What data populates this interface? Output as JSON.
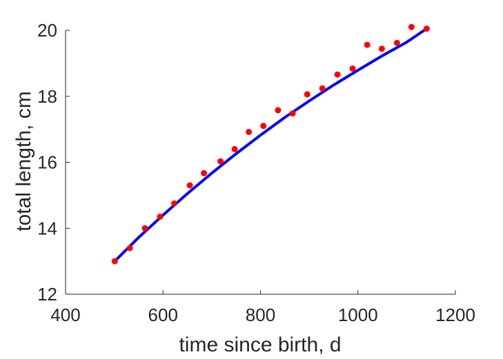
{
  "chart_data": {
    "type": "scatter",
    "title": "",
    "xlabel": "time since birth, d",
    "ylabel": "total length, cm",
    "xlim": [
      400,
      1200
    ],
    "ylim": [
      12,
      20
    ],
    "xticks": [
      400,
      600,
      800,
      1000,
      1200
    ],
    "yticks": [
      12,
      14,
      16,
      18,
      20
    ],
    "grid": false,
    "legend": "none",
    "colors": {
      "points": "#ff0000",
      "fit_line": "#0000ff",
      "axes": "#262626"
    },
    "series": [
      {
        "kind": "points",
        "x": [
          501,
          532,
          563,
          594,
          623,
          655,
          684,
          718,
          747,
          776,
          806,
          836,
          866,
          896,
          927,
          958,
          989,
          1019,
          1049,
          1080,
          1110,
          1141
        ],
        "y": [
          13.0,
          13.4,
          14.0,
          14.35,
          14.75,
          15.3,
          15.67,
          16.03,
          16.4,
          16.92,
          17.1,
          17.58,
          17.48,
          18.06,
          18.24,
          18.66,
          18.84,
          19.56,
          19.44,
          19.62,
          20.1,
          20.05
        ]
      },
      {
        "kind": "fit-line",
        "x": [
          501,
          550,
          600,
          650,
          700,
          750,
          800,
          850,
          900,
          950,
          1000,
          1050,
          1100,
          1141
        ],
        "y": [
          13.0,
          13.72,
          14.4,
          15.05,
          15.67,
          16.26,
          16.82,
          17.36,
          17.86,
          18.34,
          18.79,
          19.23,
          19.64,
          20.05
        ]
      }
    ]
  }
}
